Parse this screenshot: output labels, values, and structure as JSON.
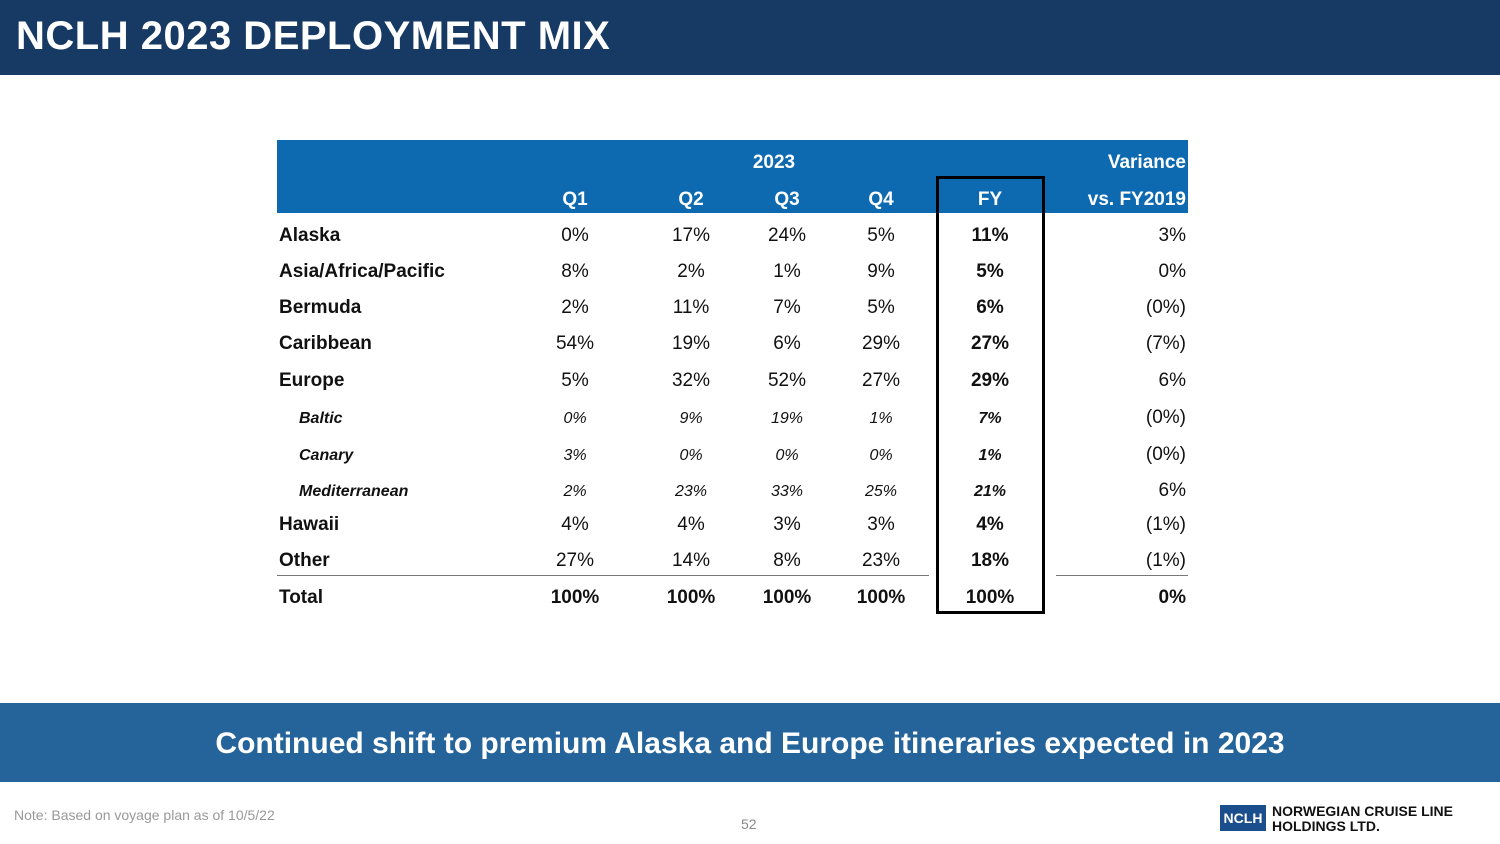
{
  "title": "NCLH 2023 DEPLOYMENT MIX",
  "table": {
    "group_header": "2023",
    "variance_header_1": "Variance",
    "variance_header_2": "vs. FY2019",
    "columns": [
      "Q1",
      "Q2",
      "Q3",
      "Q4",
      "FY"
    ],
    "rows": [
      {
        "label": "Alaska",
        "values": [
          "0%",
          "17%",
          "24%",
          "5%",
          "11%"
        ],
        "variance": "3%",
        "sub": false
      },
      {
        "label": "Asia/Africa/Pacific",
        "values": [
          "8%",
          "2%",
          "1%",
          "9%",
          "5%"
        ],
        "variance": "0%",
        "sub": false
      },
      {
        "label": "Bermuda",
        "values": [
          "2%",
          "11%",
          "7%",
          "5%",
          "6%"
        ],
        "variance": "(0%)",
        "sub": false
      },
      {
        "label": "Caribbean",
        "values": [
          "54%",
          "19%",
          "6%",
          "29%",
          "27%"
        ],
        "variance": "(7%)",
        "sub": false
      },
      {
        "label": "Europe",
        "values": [
          "5%",
          "32%",
          "52%",
          "27%",
          "29%"
        ],
        "variance": "6%",
        "sub": false
      },
      {
        "label": "Baltic",
        "values": [
          "0%",
          "9%",
          "19%",
          "1%",
          "7%"
        ],
        "variance": "(0%)",
        "sub": true
      },
      {
        "label": "Canary",
        "values": [
          "3%",
          "0%",
          "0%",
          "0%",
          "1%"
        ],
        "variance": "(0%)",
        "sub": true
      },
      {
        "label": "Mediterranean",
        "values": [
          "2%",
          "23%",
          "33%",
          "25%",
          "21%"
        ],
        "variance": "6%",
        "sub": true
      },
      {
        "label": "Hawaii",
        "values": [
          "4%",
          "4%",
          "3%",
          "3%",
          "4%"
        ],
        "variance": "(1%)",
        "sub": false
      },
      {
        "label": "Other",
        "values": [
          "27%",
          "14%",
          "8%",
          "23%",
          "18%"
        ],
        "variance": "(1%)",
        "sub": false
      },
      {
        "label": "Total",
        "values": [
          "100%",
          "100%",
          "100%",
          "100%",
          "100%"
        ],
        "variance": "0%",
        "sub": false
      }
    ]
  },
  "banner": "Continued shift to premium Alaska and Europe itineraries expected in 2023",
  "note": "Note: Based on voyage plan as of 10/5/22",
  "page_number": "52",
  "logo": {
    "mark": "NCLH",
    "line1": "NORWEGIAN CRUISE LINE",
    "line2": "HOLDINGS LTD."
  }
}
